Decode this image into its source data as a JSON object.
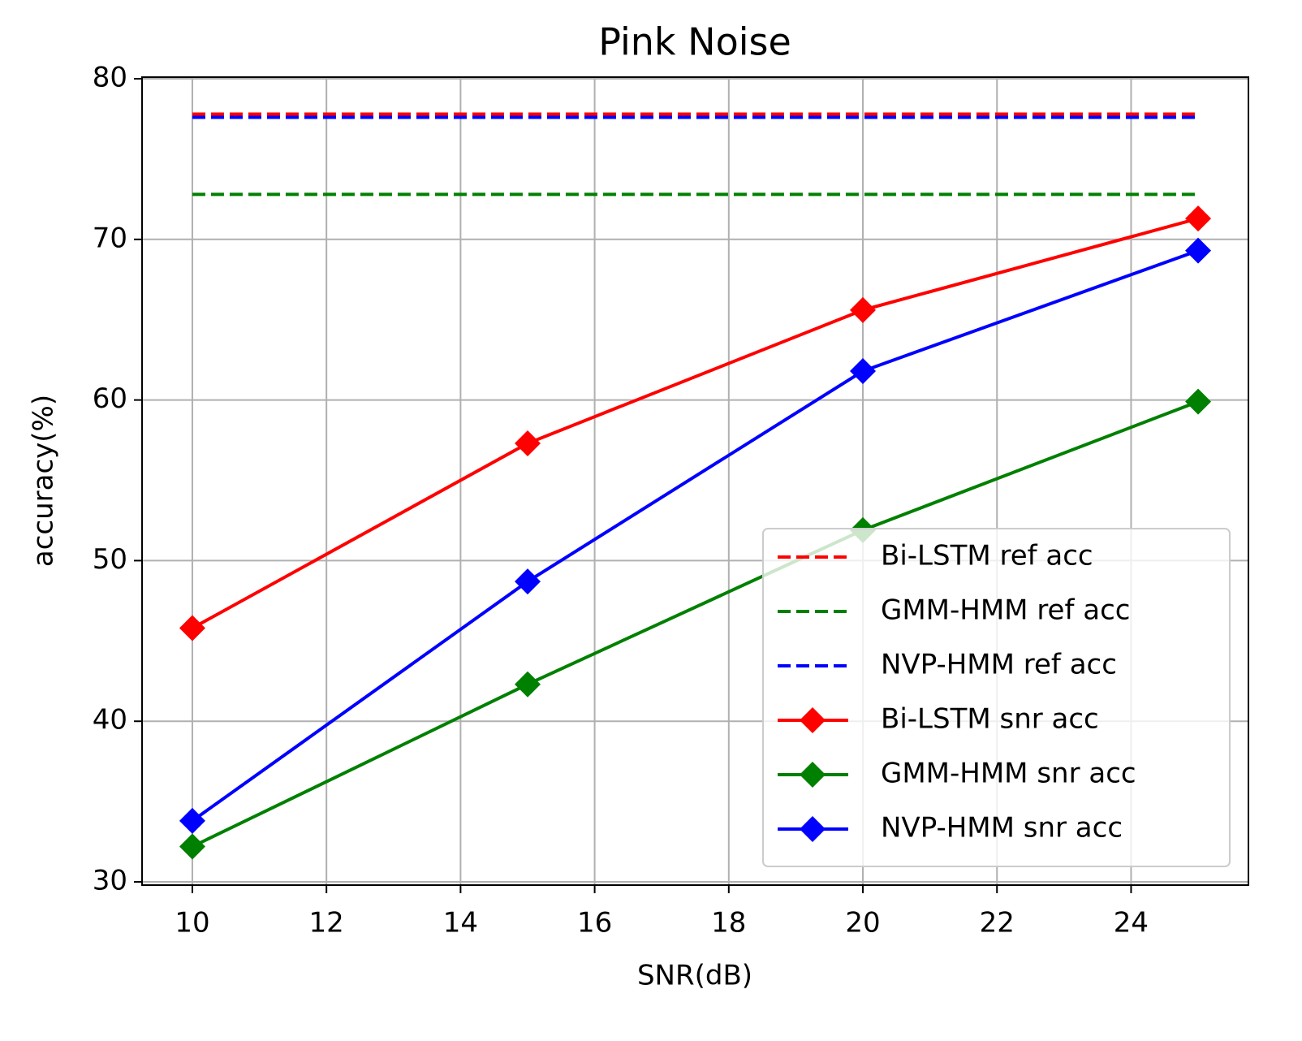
{
  "chart_data": {
    "type": "line",
    "title": "Pink Noise",
    "xlabel": "SNR(dB)",
    "ylabel": "accuracy(%)",
    "x": [
      10,
      15,
      20,
      25
    ],
    "series": [
      {
        "name": "Bi-LSTM ref acc",
        "color": "#ff0000",
        "linestyle": "dashed",
        "marker": "none",
        "values": [
          77.8,
          77.8,
          77.8,
          77.8
        ]
      },
      {
        "name": "GMM-HMM ref acc",
        "color": "#008000",
        "linestyle": "dashed",
        "marker": "none",
        "values": [
          72.8,
          72.8,
          72.8,
          72.8
        ]
      },
      {
        "name": "NVP-HMM ref acc",
        "color": "#0000ff",
        "linestyle": "dashed",
        "marker": "none",
        "values": [
          77.6,
          77.6,
          77.6,
          77.6
        ]
      },
      {
        "name": "Bi-LSTM snr acc",
        "color": "#ff0000",
        "linestyle": "solid",
        "marker": "diamond",
        "values": [
          45.8,
          57.3,
          65.6,
          71.3
        ]
      },
      {
        "name": "GMM-HMM snr acc",
        "color": "#008000",
        "linestyle": "solid",
        "marker": "diamond",
        "values": [
          32.2,
          42.3,
          51.9,
          59.9
        ]
      },
      {
        "name": "NVP-HMM snr acc",
        "color": "#0000ff",
        "linestyle": "solid",
        "marker": "diamond",
        "values": [
          33.8,
          48.7,
          61.8,
          69.3
        ]
      }
    ],
    "xlim": [
      9.25,
      25.75
    ],
    "xticks": [
      10,
      12,
      14,
      16,
      18,
      20,
      22,
      24
    ],
    "ylim": [
      29.8,
      80.1
    ],
    "yticks": [
      30,
      40,
      50,
      60,
      70,
      80
    ],
    "grid": true,
    "legend": "lower right"
  }
}
